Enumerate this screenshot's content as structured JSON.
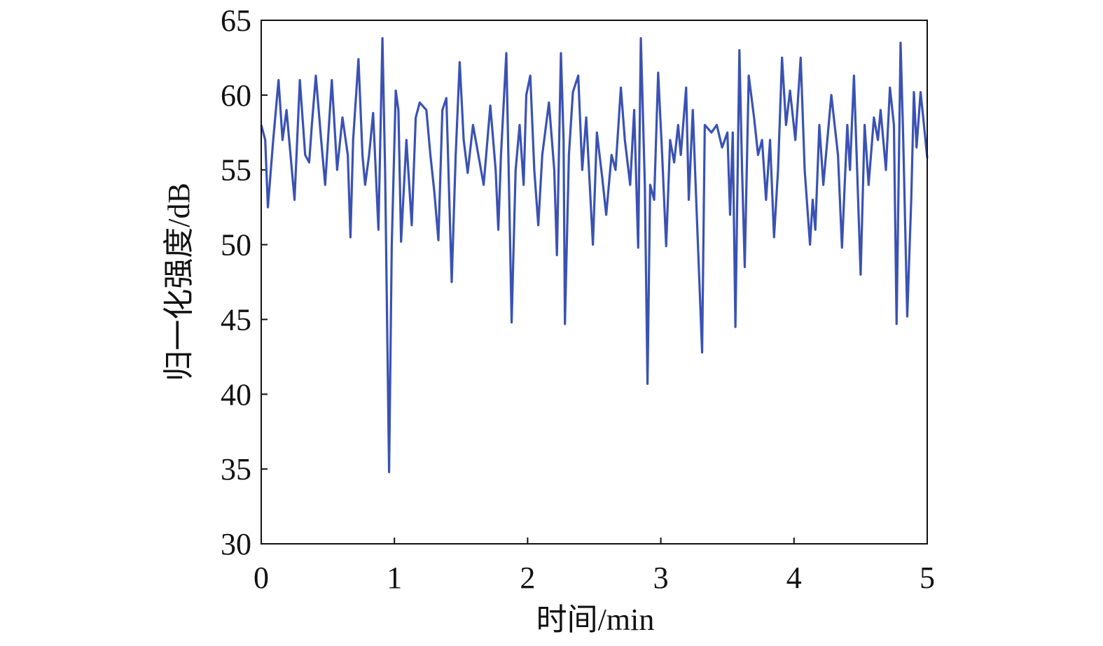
{
  "chart_data": {
    "type": "line",
    "xlabel": "时间/min",
    "ylabel": "归一化强度/dB",
    "xlim": [
      0,
      5
    ],
    "xticks": [
      0,
      1,
      2,
      3,
      4,
      5
    ],
    "ylim": [
      30,
      65
    ],
    "yticks": [
      30,
      35,
      40,
      45,
      50,
      55,
      60,
      65
    ],
    "grid": false,
    "series": [
      {
        "color": "#3a52b4",
        "x": [
          0,
          0.03,
          0.05,
          0.09,
          0.13,
          0.16,
          0.19,
          0.22,
          0.25,
          0.29,
          0.33,
          0.36,
          0.38,
          0.41,
          0.45,
          0.48,
          0.53,
          0.57,
          0.61,
          0.65,
          0.67,
          0.69,
          0.73,
          0.76,
          0.78,
          0.81,
          0.84,
          0.88,
          0.91,
          0.93,
          0.96,
          0.98,
          1.01,
          1.03,
          1.05,
          1.09,
          1.13,
          1.16,
          1.19,
          1.24,
          1.27,
          1.3,
          1.33,
          1.36,
          1.39,
          1.43,
          1.46,
          1.49,
          1.52,
          1.55,
          1.59,
          1.63,
          1.67,
          1.72,
          1.76,
          1.78,
          1.8,
          1.84,
          1.86,
          1.88,
          1.91,
          1.94,
          1.97,
          1.99,
          2.02,
          2.05,
          2.08,
          2.11,
          2.16,
          2.2,
          2.22,
          2.25,
          2.27,
          2.28,
          2.31,
          2.34,
          2.38,
          2.41,
          2.44,
          2.49,
          2.52,
          2.56,
          2.59,
          2.63,
          2.66,
          2.7,
          2.73,
          2.77,
          2.8,
          2.83,
          2.85,
          2.88,
          2.9,
          2.92,
          2.95,
          2.98,
          3.01,
          3.04,
          3.07,
          3.1,
          3.13,
          3.15,
          3.19,
          3.21,
          3.24,
          3.27,
          3.31,
          3.33,
          3.38,
          3.42,
          3.46,
          3.5,
          3.52,
          3.54,
          3.56,
          3.59,
          3.61,
          3.63,
          3.66,
          3.7,
          3.73,
          3.76,
          3.79,
          3.82,
          3.85,
          3.88,
          3.91,
          3.94,
          3.97,
          4.01,
          4.05,
          4.08,
          4.12,
          4.14,
          4.16,
          4.19,
          4.22,
          4.26,
          4.28,
          4.33,
          4.36,
          4.4,
          4.42,
          4.45,
          4.47,
          4.5,
          4.53,
          4.56,
          4.6,
          4.63,
          4.65,
          4.69,
          4.72,
          4.75,
          4.77,
          4.8,
          4.82,
          4.85,
          4.88,
          4.9,
          4.92,
          4.95,
          4.97,
          5
        ],
        "values": [
          58,
          57,
          52.5,
          57,
          61,
          57,
          59,
          56,
          53,
          61,
          56,
          55.5,
          58,
          61.3,
          57,
          54,
          61,
          55,
          58.5,
          56,
          50.5,
          57,
          62.4,
          56,
          54,
          56,
          58.8,
          51,
          63.8,
          55,
          34.8,
          50,
          60.3,
          59,
          50.2,
          57,
          51.3,
          58.5,
          59.5,
          59,
          56,
          53.5,
          50.3,
          59,
          59.8,
          47.5,
          56,
          62.2,
          57,
          54.8,
          58,
          56,
          54,
          59.3,
          55,
          51,
          56,
          62.8,
          54,
          44.8,
          55,
          58,
          54,
          60,
          61.3,
          55,
          51.3,
          56,
          59.5,
          55,
          49.3,
          62.8,
          57,
          44.7,
          56,
          60.2,
          61.3,
          55,
          58.5,
          50,
          57.5,
          54.5,
          52,
          56,
          55,
          60.5,
          57,
          54,
          59,
          49.8,
          63.8,
          54,
          40.7,
          54,
          53,
          61.5,
          56,
          49.9,
          57,
          55.5,
          58,
          56,
          60.5,
          53,
          59,
          52,
          42.8,
          58,
          57.5,
          58,
          56.5,
          57.5,
          52,
          57.5,
          44.5,
          63,
          55,
          48.5,
          61.3,
          58.5,
          56,
          57,
          53,
          57,
          50.5,
          55,
          62.5,
          58,
          60.3,
          57,
          62.5,
          55,
          50,
          53,
          51,
          58,
          54,
          58,
          60,
          56,
          49.8,
          58,
          55,
          61.3,
          56,
          48,
          58,
          54,
          58.5,
          57,
          59,
          55,
          60.5,
          58,
          44.7,
          63.5,
          57,
          45.2,
          53,
          60.2,
          56.5,
          60.2,
          58.5,
          55.8
        ]
      }
    ]
  }
}
